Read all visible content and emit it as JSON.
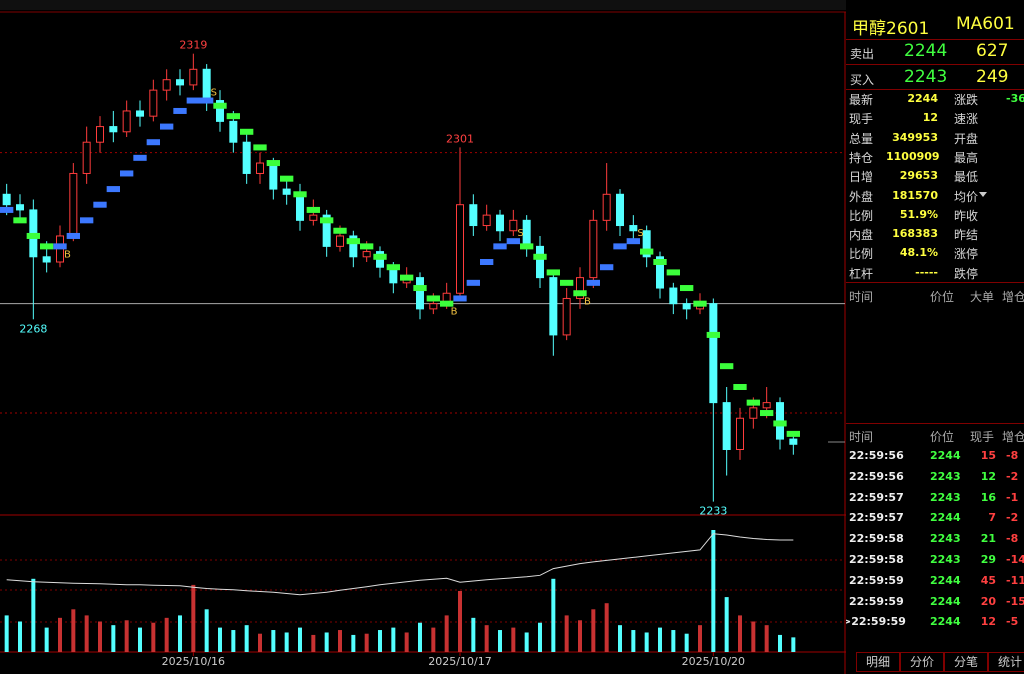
{
  "chart_data": {
    "type": "candlestick",
    "categories": [
      null,
      null,
      null,
      null,
      null,
      null,
      null,
      null,
      null,
      null,
      null,
      null,
      null,
      null,
      "2025/10/16",
      null,
      null,
      null,
      null,
      null,
      null,
      null,
      null,
      null,
      null,
      null,
      null,
      null,
      null,
      null,
      null,
      null,
      null,
      null,
      "2025/10/17",
      null,
      null,
      null,
      null,
      null,
      null,
      null,
      null,
      null,
      null,
      null,
      null,
      null,
      null,
      null,
      null,
      null,
      null,
      "2025/10/20",
      null,
      null,
      null,
      null,
      null,
      null
    ],
    "open": [
      2292,
      2290,
      2289,
      2280,
      2279,
      2284,
      2296,
      2302,
      2305,
      2304,
      2308,
      2307,
      2312,
      2314,
      2313,
      2316,
      2310,
      2306,
      2302,
      2296,
      2298,
      2293,
      2292,
      2287,
      2288,
      2282,
      2284,
      2280,
      2281,
      2278,
      2275,
      2276,
      2270,
      2271,
      2273,
      2290,
      2286,
      2288,
      2285,
      2287,
      2282,
      2276,
      2265,
      2272,
      2276,
      2287,
      2292,
      2286,
      2285,
      2280,
      2274,
      2271,
      2270,
      2271,
      2252,
      2243,
      2249,
      2251,
      2252,
      2245
    ],
    "high": [
      2294,
      2292,
      2291,
      2283,
      2286,
      2298,
      2305,
      2307,
      2308,
      2310,
      2310,
      2314,
      2316,
      2316,
      2319,
      2317,
      2312,
      2308,
      2304,
      2300,
      2299,
      2295,
      2294,
      2291,
      2289,
      2286,
      2285,
      2283,
      2282,
      2279,
      2278,
      2277,
      2273,
      2275,
      2301,
      2292,
      2290,
      2289,
      2289,
      2288,
      2284,
      2277,
      2274,
      2278,
      2289,
      2298,
      2293,
      2288,
      2286,
      2281,
      2275,
      2272,
      2273,
      2272,
      2255,
      2251,
      2253,
      2255,
      2253,
      2246
    ],
    "low": [
      2288,
      2287,
      2268,
      2277,
      2278,
      2283,
      2294,
      2300,
      2302,
      2303,
      2305,
      2306,
      2310,
      2311,
      2312,
      2308,
      2304,
      2300,
      2294,
      2294,
      2291,
      2290,
      2285,
      2286,
      2280,
      2281,
      2278,
      2279,
      2276,
      2273,
      2274,
      2268,
      2269,
      2270,
      2272,
      2284,
      2285,
      2283,
      2284,
      2280,
      2274,
      2261,
      2264,
      2270,
      2274,
      2285,
      2284,
      2283,
      2278,
      2272,
      2269,
      2268,
      2269,
      2233,
      2238,
      2241,
      2247,
      2249,
      2243,
      2242
    ],
    "close": [
      2290,
      2289,
      2280,
      2279,
      2284,
      2296,
      2302,
      2305,
      2304,
      2308,
      2307,
      2312,
      2314,
      2313,
      2316,
      2310,
      2306,
      2302,
      2296,
      2298,
      2293,
      2292,
      2287,
      2288,
      2282,
      2284,
      2280,
      2281,
      2278,
      2275,
      2276,
      2270,
      2271,
      2273,
      2290,
      2286,
      2288,
      2285,
      2287,
      2282,
      2276,
      2265,
      2272,
      2276,
      2287,
      2292,
      2286,
      2285,
      2280,
      2274,
      2271,
      2270,
      2271,
      2252,
      2243,
      2249,
      2251,
      2252,
      2245,
      2244
    ],
    "up_color": "#ff3c3c",
    "down_color": "#54ffff",
    "trend": [
      2289,
      2287,
      2284,
      2282,
      2282,
      2284,
      2287,
      2290,
      2293,
      2296,
      2299,
      2302,
      2305,
      2308,
      2310,
      2310,
      2309,
      2307,
      2304,
      2301,
      2298,
      2295,
      2292,
      2289,
      2287,
      2285,
      2283,
      2282,
      2280,
      2278,
      2276,
      2274,
      2272,
      2271,
      2272,
      2275,
      2279,
      2282,
      2283,
      2282,
      2280,
      2277,
      2275,
      2273,
      2275,
      2278,
      2282,
      2283,
      2281,
      2279,
      2277,
      2274,
      2271,
      2265,
      2259,
      2255,
      2252,
      2250,
      2248,
      2246
    ],
    "trend_up_color": "#3c78ff",
    "trend_down_color": "#3cff3c",
    "signals": [
      {
        "index": 4,
        "label": "B"
      },
      {
        "index": 15,
        "label": "S"
      },
      {
        "index": 33,
        "label": "B"
      },
      {
        "index": 38,
        "label": "S"
      },
      {
        "index": 43,
        "label": "B"
      },
      {
        "index": 47,
        "label": "S"
      }
    ],
    "annotations": [
      {
        "index": 14,
        "value": 2319,
        "color": "#ff4040"
      },
      {
        "index": 34,
        "value": 2301,
        "color": "#ff4040"
      },
      {
        "index": 2,
        "value": 2268,
        "color": "#54ffff"
      },
      {
        "index": 53,
        "value": 2233,
        "color": "#54ffff"
      }
    ],
    "levels": [
      {
        "value": 2300,
        "style": "dotted"
      },
      {
        "value": 2271,
        "style": "solid"
      },
      {
        "value": 2250,
        "style": "dotted"
      }
    ],
    "ylim": [
      2231,
      2327
    ],
    "volume": [
      30,
      25,
      60,
      20,
      28,
      35,
      30,
      25,
      22,
      26,
      20,
      24,
      28,
      30,
      55,
      35,
      20,
      18,
      22,
      15,
      18,
      16,
      20,
      14,
      16,
      18,
      14,
      15,
      18,
      20,
      16,
      24,
      20,
      30,
      50,
      28,
      22,
      18,
      20,
      16,
      24,
      60,
      30,
      26,
      35,
      40,
      22,
      18,
      16,
      20,
      18,
      15,
      22,
      100,
      45,
      30,
      25,
      22,
      14,
      12
    ],
    "vlim": [
      0,
      100
    ],
    "open_interest": [
      1085000,
      1084600,
      1084200,
      1084000,
      1083800,
      1083600,
      1083500,
      1083400,
      1083200,
      1083000,
      1083000,
      1082800,
      1082700,
      1082600,
      1082000,
      1081500,
      1081200,
      1081000,
      1080600,
      1080300,
      1080000,
      1079500,
      1079000,
      1079500,
      1080000,
      1080800,
      1081500,
      1082200,
      1083000,
      1083600,
      1084200,
      1084800,
      1085200,
      1085600,
      1084000,
      1084500,
      1085000,
      1085400,
      1085800,
      1086200,
      1086800,
      1089500,
      1090500,
      1091500,
      1092200,
      1092800,
      1093400,
      1094000,
      1094600,
      1095200,
      1095800,
      1096400,
      1097000,
      1103500,
      1103000,
      1102200,
      1101600,
      1101200,
      1101000,
      1101000
    ],
    "oi_lim": [
      1056000,
      1105000
    ]
  },
  "quote": {
    "name": "甲醇2601",
    "code": "MA601",
    "sell": [
      "卖出",
      "2244",
      "627"
    ],
    "buy": [
      "买入",
      "2243",
      "249"
    ],
    "stats": [
      [
        "最新",
        "2244",
        "涨跌",
        "-36"
      ],
      [
        "现手",
        "12",
        "速涨",
        ""
      ],
      [
        "总量",
        "349953",
        "开盘",
        ""
      ],
      [
        "持仓",
        "1100909",
        "最高",
        ""
      ],
      [
        "日增",
        "29653",
        "最低",
        ""
      ],
      [
        "外盘",
        "181570",
        "均价",
        ""
      ],
      [
        "比例",
        "51.9%",
        "昨收",
        ""
      ],
      [
        "内盘",
        "168383",
        "昨结",
        ""
      ],
      [
        "比例",
        "48.1%",
        "涨停",
        ""
      ],
      [
        "杠杆",
        "-----",
        "跌停",
        ""
      ]
    ]
  },
  "big_orders": {
    "header": [
      "时间",
      "价位",
      "大单",
      "增仓"
    ]
  },
  "trades": {
    "header": [
      "时间",
      "价位",
      "现手",
      "增仓"
    ],
    "rows": [
      [
        "22:59:56",
        "2244",
        "15",
        "-8"
      ],
      [
        "22:59:56",
        "2243",
        "12",
        "-2"
      ],
      [
        "22:59:57",
        "2243",
        "16",
        "-1"
      ],
      [
        "22:59:57",
        "2244",
        "7",
        "-2"
      ],
      [
        "22:59:58",
        "2243",
        "21",
        "-8"
      ],
      [
        "22:59:58",
        "2243",
        "29",
        "-14"
      ],
      [
        "22:59:59",
        "2244",
        "45",
        "-11"
      ],
      [
        "22:59:59",
        "2244",
        "20",
        "-15"
      ],
      [
        ">22:59:59",
        "2244",
        "12",
        "-5"
      ]
    ],
    "row_colors": [
      "#ff4040",
      "#40ff40",
      "#40ff40",
      "#ff4040",
      "#40ff40",
      "#40ff40",
      "#ff4040",
      "#ff4040",
      "#ff4040"
    ]
  },
  "tabs": [
    "明细",
    "分价",
    "分笔",
    "统计"
  ]
}
